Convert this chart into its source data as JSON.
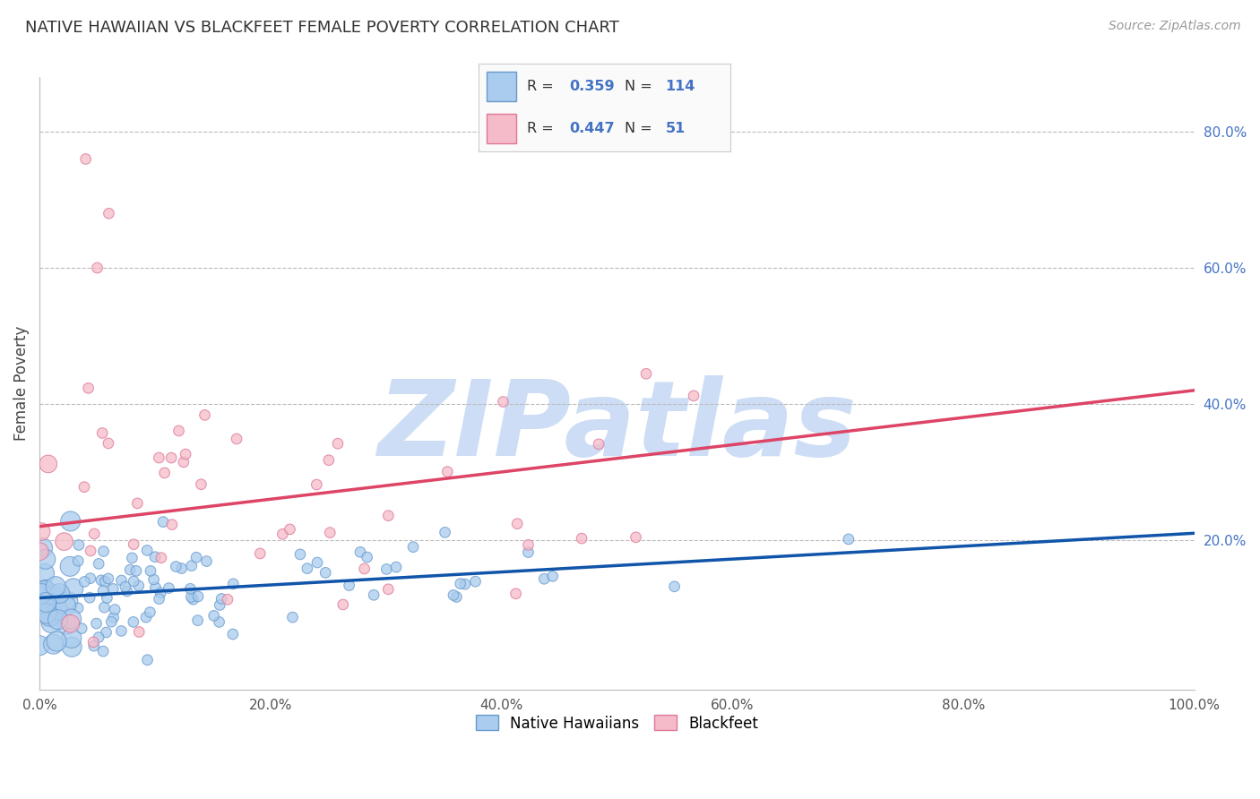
{
  "title": "NATIVE HAWAIIAN VS BLACKFEET FEMALE POVERTY CORRELATION CHART",
  "source": "Source: ZipAtlas.com",
  "ylabel": "Female Poverty",
  "xlim": [
    0.0,
    1.0
  ],
  "ylim": [
    -0.02,
    0.88
  ],
  "yticks": [
    0.2,
    0.4,
    0.6,
    0.8
  ],
  "ytick_labels": [
    "20.0%",
    "40.0%",
    "60.0%",
    "80.0%"
  ],
  "xticks": [
    0.0,
    0.2,
    0.4,
    0.6,
    0.8,
    1.0
  ],
  "xtick_labels": [
    "0.0%",
    "20.0%",
    "40.0%",
    "60.0%",
    "80.0%",
    "100.0%"
  ],
  "series": [
    {
      "name": "Native Hawaiians",
      "color": "#aaccee",
      "edge_color": "#6699cc",
      "R": 0.359,
      "N": 114,
      "line_color": "#1155aa",
      "line_b": 0.115,
      "line_m": 0.095
    },
    {
      "name": "Blackfeet",
      "color": "#f5bbc8",
      "edge_color": "#dd7799",
      "R": 0.447,
      "N": 51,
      "line_color": "#dd4466",
      "line_b": 0.22,
      "line_m": 0.2
    }
  ],
  "watermark": "ZIPatlas",
  "watermark_color": "#ccddf5",
  "background_color": "#ffffff",
  "grid_color": "#bbbbbb",
  "title_fontsize": 13,
  "source_fontsize": 10,
  "tick_fontsize": 11,
  "ylabel_fontsize": 12
}
